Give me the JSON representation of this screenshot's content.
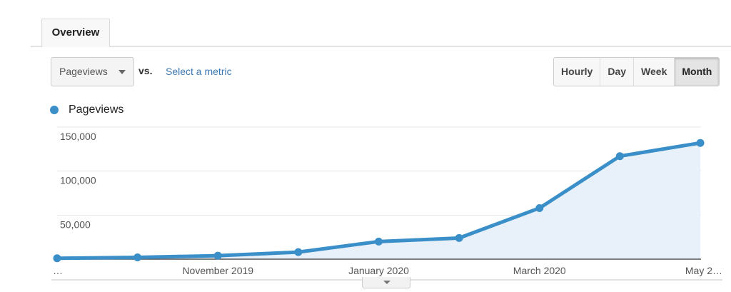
{
  "tabs": [
    {
      "label": "Overview",
      "active": true
    }
  ],
  "metric_selector": {
    "value": "Pageviews",
    "vs_label": "vs.",
    "compare_link": "Select a metric"
  },
  "granularity": {
    "options": [
      "Hourly",
      "Day",
      "Week",
      "Month"
    ],
    "selected": "Month"
  },
  "colors": {
    "series": "#3a8fc8",
    "fill": "#e8f1fa",
    "link": "#3a78b5"
  },
  "chart_data": {
    "type": "area",
    "x": [
      "Sep 2019",
      "Oct 2019",
      "Nov 2019",
      "Dec 2019",
      "Jan 2020",
      "Feb 2020",
      "Mar 2020",
      "Apr 2020",
      "May 2020"
    ],
    "x_tick_labels": [
      "…",
      "",
      "November 2019",
      "",
      "January 2020",
      "",
      "March 2020",
      "",
      "May 2…"
    ],
    "series": [
      {
        "name": "Pageviews",
        "values": [
          1000,
          2000,
          4000,
          8000,
          20000,
          24000,
          58000,
          117000,
          132000
        ]
      }
    ],
    "y_ticks": [
      50000,
      100000,
      150000
    ],
    "y_tick_labels": [
      "50,000",
      "100,000",
      "150,000"
    ],
    "ylim": [
      0,
      150000
    ],
    "grid": true,
    "legend": "top-left"
  }
}
